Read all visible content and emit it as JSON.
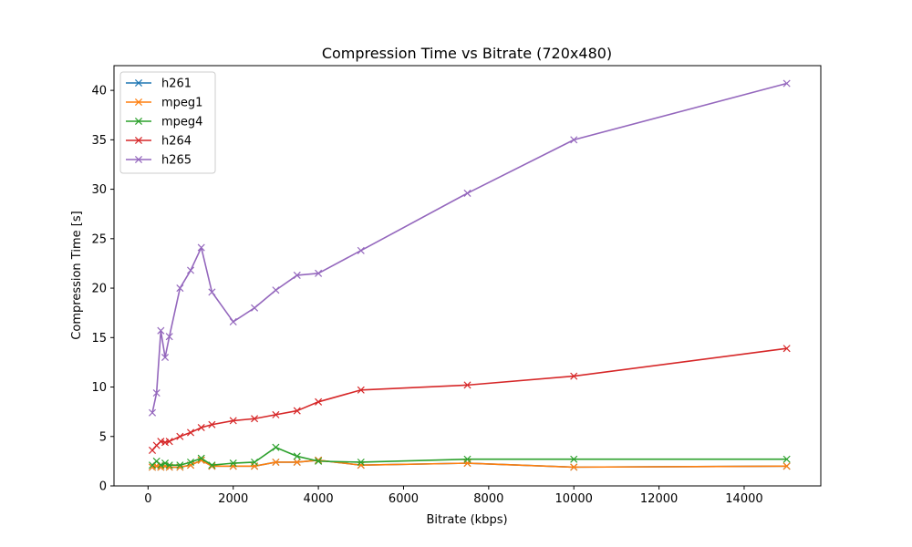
{
  "chart_data": {
    "type": "line",
    "title": "Compression Time vs Bitrate (720x480)",
    "xlabel": "Bitrate (kbps)",
    "ylabel": "Compression Time [s]",
    "xlim": [
      -800,
      15800
    ],
    "ylim": [
      0,
      42.5
    ],
    "xticks": [
      0,
      2000,
      4000,
      6000,
      8000,
      10000,
      12000,
      14000
    ],
    "yticks": [
      0,
      5,
      10,
      15,
      20,
      25,
      30,
      35,
      40
    ],
    "grid": false,
    "legend_position": "top-left",
    "marker": "x",
    "x": [
      100,
      200,
      300,
      400,
      500,
      750,
      1000,
      1250,
      1500,
      2000,
      2500,
      3000,
      3500,
      4000,
      5000,
      7500,
      10000,
      15000
    ],
    "series": [
      {
        "name": "h261",
        "color": "#1f77b4",
        "values": [
          1.9,
          2.0,
          1.9,
          2.0,
          1.9,
          1.9,
          2.1,
          2.6,
          2.0,
          2.0,
          2.0,
          2.4,
          2.4,
          2.6,
          2.1,
          2.3,
          1.9,
          2.0
        ]
      },
      {
        "name": "mpeg1",
        "color": "#ff7f0e",
        "values": [
          1.9,
          2.0,
          1.9,
          2.0,
          1.9,
          1.9,
          2.1,
          2.6,
          2.0,
          2.0,
          2.0,
          2.4,
          2.4,
          2.6,
          2.1,
          2.3,
          1.9,
          2.0
        ]
      },
      {
        "name": "mpeg4",
        "color": "#2ca02c",
        "values": [
          2.1,
          2.5,
          2.1,
          2.3,
          2.1,
          2.1,
          2.4,
          2.8,
          2.1,
          2.3,
          2.4,
          3.9,
          3.0,
          2.5,
          2.4,
          2.7,
          2.7,
          2.7
        ]
      },
      {
        "name": "h264",
        "color": "#d62728",
        "values": [
          3.6,
          4.1,
          4.5,
          4.4,
          4.5,
          5.0,
          5.4,
          5.9,
          6.2,
          6.6,
          6.8,
          7.2,
          7.6,
          8.5,
          9.7,
          10.2,
          11.1,
          13.9
        ]
      },
      {
        "name": "h265",
        "color": "#9467bd",
        "values": [
          7.4,
          9.4,
          15.7,
          13.0,
          15.1,
          20.0,
          21.8,
          24.1,
          19.6,
          16.6,
          18.0,
          19.8,
          21.3,
          21.5,
          23.8,
          29.6,
          35.0,
          40.7
        ]
      }
    ]
  }
}
